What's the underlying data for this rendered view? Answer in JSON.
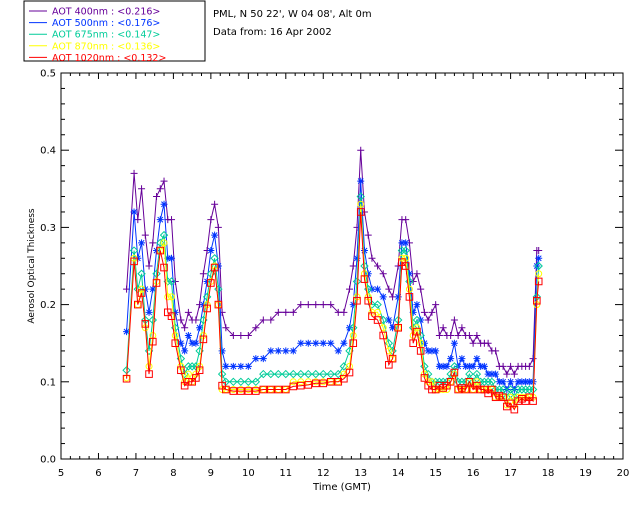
{
  "site_info": {
    "location": "PML, N 50 22', W 04 08', Alt 0m",
    "date_line": "Data from: 16 Apr 2002"
  },
  "chart_data": {
    "type": "line",
    "title": "",
    "xlabel": "Time (GMT)",
    "ylabel": "Aerosol Optical Thickness",
    "xlim": [
      5,
      20
    ],
    "ylim": [
      0.0,
      0.5
    ],
    "x_ticks": [
      "5",
      "6",
      "7",
      "8",
      "9",
      "10",
      "11",
      "12",
      "13",
      "14",
      "15",
      "16",
      "17",
      "18",
      "19",
      "20"
    ],
    "y_ticks": [
      "0.0",
      "0.1",
      "0.2",
      "0.3",
      "0.4",
      "0.5"
    ],
    "grid": false,
    "legend_position": "top-left",
    "series": [
      {
        "name": "AOT  400nm : <0.216>",
        "color": "#660099",
        "marker": "plus",
        "x": [
          6.75,
          6.95,
          7.05,
          7.15,
          7.25,
          7.35,
          7.45,
          7.55,
          7.65,
          7.75,
          7.85,
          7.95,
          8.05,
          8.2,
          8.3,
          8.4,
          8.5,
          8.6,
          8.7,
          8.8,
          8.9,
          9.0,
          9.1,
          9.2,
          9.3,
          9.4,
          9.6,
          9.8,
          10.0,
          10.2,
          10.4,
          10.6,
          10.8,
          11.0,
          11.2,
          11.4,
          11.6,
          11.8,
          12.0,
          12.2,
          12.4,
          12.55,
          12.7,
          12.8,
          12.9,
          13.0,
          13.1,
          13.2,
          13.3,
          13.45,
          13.6,
          13.75,
          13.85,
          14.0,
          14.1,
          14.2,
          14.3,
          14.4,
          14.5,
          14.6,
          14.7,
          14.8,
          14.9,
          15.0,
          15.1,
          15.2,
          15.3,
          15.4,
          15.5,
          15.6,
          15.7,
          15.8,
          15.9,
          16.0,
          16.1,
          16.2,
          16.3,
          16.4,
          16.5,
          16.6,
          16.7,
          16.8,
          16.9,
          17.0,
          17.1,
          17.2,
          17.3,
          17.4,
          17.5,
          17.6,
          17.7,
          17.75
        ],
        "values": [
          0.22,
          0.37,
          0.31,
          0.35,
          0.29,
          0.25,
          0.28,
          0.34,
          0.35,
          0.36,
          0.31,
          0.31,
          0.23,
          0.18,
          0.17,
          0.19,
          0.18,
          0.18,
          0.2,
          0.24,
          0.27,
          0.31,
          0.33,
          0.3,
          0.19,
          0.17,
          0.16,
          0.16,
          0.16,
          0.17,
          0.18,
          0.18,
          0.19,
          0.19,
          0.19,
          0.2,
          0.2,
          0.2,
          0.2,
          0.2,
          0.19,
          0.19,
          0.22,
          0.25,
          0.3,
          0.4,
          0.32,
          0.29,
          0.26,
          0.25,
          0.24,
          0.22,
          0.21,
          0.25,
          0.31,
          0.31,
          0.28,
          0.23,
          0.24,
          0.22,
          0.19,
          0.18,
          0.19,
          0.2,
          0.16,
          0.17,
          0.16,
          0.16,
          0.18,
          0.16,
          0.17,
          0.16,
          0.16,
          0.15,
          0.16,
          0.15,
          0.15,
          0.15,
          0.14,
          0.14,
          0.12,
          0.12,
          0.11,
          0.12,
          0.11,
          0.12,
          0.12,
          0.12,
          0.12,
          0.13,
          0.27,
          0.27
        ]
      },
      {
        "name": "AOT  500nm : <0.176>",
        "color": "#0033ff",
        "marker": "star",
        "x": [
          6.75,
          6.95,
          7.05,
          7.15,
          7.25,
          7.35,
          7.45,
          7.55,
          7.65,
          7.75,
          7.85,
          7.95,
          8.05,
          8.2,
          8.3,
          8.4,
          8.5,
          8.6,
          8.7,
          8.8,
          8.9,
          9.0,
          9.1,
          9.2,
          9.3,
          9.4,
          9.6,
          9.8,
          10.0,
          10.2,
          10.4,
          10.6,
          10.8,
          11.0,
          11.2,
          11.4,
          11.6,
          11.8,
          12.0,
          12.2,
          12.4,
          12.55,
          12.7,
          12.8,
          12.9,
          13.0,
          13.1,
          13.2,
          13.3,
          13.45,
          13.6,
          13.75,
          13.85,
          14.0,
          14.1,
          14.2,
          14.3,
          14.4,
          14.5,
          14.6,
          14.7,
          14.8,
          14.9,
          15.0,
          15.1,
          15.2,
          15.3,
          15.4,
          15.5,
          15.6,
          15.7,
          15.8,
          15.9,
          16.0,
          16.1,
          16.2,
          16.3,
          16.4,
          16.5,
          16.6,
          16.7,
          16.8,
          16.9,
          17.0,
          17.1,
          17.2,
          17.3,
          17.4,
          17.5,
          17.6,
          17.7,
          17.75
        ],
        "values": [
          0.165,
          0.32,
          0.26,
          0.28,
          0.22,
          0.19,
          0.22,
          0.27,
          0.31,
          0.33,
          0.26,
          0.26,
          0.19,
          0.15,
          0.14,
          0.16,
          0.15,
          0.15,
          0.17,
          0.2,
          0.23,
          0.27,
          0.29,
          0.25,
          0.14,
          0.12,
          0.12,
          0.12,
          0.12,
          0.13,
          0.13,
          0.14,
          0.14,
          0.14,
          0.14,
          0.15,
          0.15,
          0.15,
          0.15,
          0.15,
          0.14,
          0.15,
          0.17,
          0.2,
          0.26,
          0.36,
          0.27,
          0.24,
          0.22,
          0.22,
          0.21,
          0.18,
          0.17,
          0.21,
          0.28,
          0.28,
          0.24,
          0.19,
          0.2,
          0.18,
          0.15,
          0.14,
          0.14,
          0.14,
          0.12,
          0.12,
          0.12,
          0.13,
          0.15,
          0.12,
          0.13,
          0.12,
          0.12,
          0.12,
          0.13,
          0.12,
          0.12,
          0.11,
          0.11,
          0.11,
          0.1,
          0.1,
          0.09,
          0.1,
          0.09,
          0.1,
          0.1,
          0.1,
          0.1,
          0.1,
          0.25,
          0.26
        ]
      },
      {
        "name": "AOT  675nm : <0.147>",
        "color": "#00cc99",
        "marker": "diamond",
        "x": [
          6.75,
          6.95,
          7.05,
          7.15,
          7.25,
          7.35,
          7.45,
          7.55,
          7.65,
          7.75,
          7.85,
          7.95,
          8.05,
          8.2,
          8.3,
          8.4,
          8.5,
          8.6,
          8.7,
          8.8,
          8.9,
          9.0,
          9.1,
          9.2,
          9.3,
          9.4,
          9.6,
          9.8,
          10.0,
          10.2,
          10.4,
          10.6,
          10.8,
          11.0,
          11.2,
          11.4,
          11.6,
          11.8,
          12.0,
          12.2,
          12.4,
          12.55,
          12.7,
          12.8,
          12.9,
          13.0,
          13.1,
          13.2,
          13.3,
          13.45,
          13.6,
          13.75,
          13.85,
          14.0,
          14.1,
          14.2,
          14.3,
          14.4,
          14.5,
          14.6,
          14.7,
          14.8,
          14.9,
          15.0,
          15.1,
          15.2,
          15.3,
          15.4,
          15.5,
          15.6,
          15.7,
          15.8,
          15.9,
          16.0,
          16.1,
          16.2,
          16.3,
          16.4,
          16.5,
          16.6,
          16.7,
          16.8,
          16.9,
          17.0,
          17.1,
          17.2,
          17.3,
          17.4,
          17.5,
          17.6,
          17.7,
          17.75
        ],
        "values": [
          0.115,
          0.27,
          0.22,
          0.24,
          0.18,
          0.14,
          0.18,
          0.24,
          0.28,
          0.29,
          0.23,
          0.23,
          0.17,
          0.13,
          0.11,
          0.12,
          0.12,
          0.12,
          0.14,
          0.18,
          0.21,
          0.24,
          0.26,
          0.22,
          0.11,
          0.1,
          0.1,
          0.1,
          0.1,
          0.1,
          0.11,
          0.11,
          0.11,
          0.11,
          0.11,
          0.11,
          0.11,
          0.11,
          0.11,
          0.11,
          0.11,
          0.12,
          0.14,
          0.17,
          0.23,
          0.34,
          0.25,
          0.22,
          0.2,
          0.2,
          0.18,
          0.15,
          0.14,
          0.18,
          0.27,
          0.27,
          0.23,
          0.17,
          0.18,
          0.16,
          0.12,
          0.11,
          0.1,
          0.1,
          0.1,
          0.1,
          0.1,
          0.11,
          0.12,
          0.1,
          0.1,
          0.1,
          0.11,
          0.1,
          0.11,
          0.1,
          0.1,
          0.1,
          0.1,
          0.09,
          0.09,
          0.09,
          0.08,
          0.09,
          0.08,
          0.09,
          0.09,
          0.09,
          0.09,
          0.09,
          0.21,
          0.25
        ]
      },
      {
        "name": "AOT  870nm : <0.136>",
        "color": "#ffff00",
        "marker": "circle",
        "x": [
          6.75,
          6.95,
          7.05,
          7.15,
          7.25,
          7.35,
          7.45,
          7.55,
          7.65,
          7.75,
          7.85,
          7.95,
          8.05,
          8.2,
          8.3,
          8.4,
          8.5,
          8.6,
          8.7,
          8.8,
          8.9,
          9.0,
          9.1,
          9.2,
          9.3,
          9.4,
          9.6,
          9.8,
          10.0,
          10.2,
          10.4,
          10.6,
          10.8,
          11.0,
          11.2,
          11.4,
          11.6,
          11.8,
          12.0,
          12.2,
          12.4,
          12.55,
          12.7,
          12.8,
          12.9,
          13.0,
          13.1,
          13.2,
          13.3,
          13.45,
          13.6,
          13.75,
          13.85,
          14.0,
          14.1,
          14.2,
          14.3,
          14.4,
          14.5,
          14.6,
          14.7,
          14.8,
          14.9,
          15.0,
          15.1,
          15.2,
          15.3,
          15.4,
          15.5,
          15.6,
          15.7,
          15.8,
          15.9,
          16.0,
          16.1,
          16.2,
          16.3,
          16.4,
          16.5,
          16.6,
          16.7,
          16.8,
          16.9,
          17.0,
          17.1,
          17.2,
          17.3,
          17.4,
          17.5,
          17.6,
          17.7,
          17.75
        ],
        "values": [
          0.105,
          0.26,
          0.2,
          0.22,
          0.17,
          0.12,
          0.16,
          0.23,
          0.27,
          0.28,
          0.21,
          0.21,
          0.16,
          0.12,
          0.1,
          0.11,
          0.1,
          0.11,
          0.12,
          0.16,
          0.2,
          0.23,
          0.25,
          0.2,
          0.09,
          0.09,
          0.09,
          0.09,
          0.09,
          0.09,
          0.09,
          0.09,
          0.09,
          0.09,
          0.1,
          0.1,
          0.1,
          0.1,
          0.1,
          0.1,
          0.1,
          0.11,
          0.12,
          0.16,
          0.21,
          0.33,
          0.24,
          0.21,
          0.19,
          0.19,
          0.17,
          0.14,
          0.13,
          0.17,
          0.26,
          0.26,
          0.22,
          0.16,
          0.17,
          0.15,
          0.11,
          0.1,
          0.1,
          0.09,
          0.09,
          0.09,
          0.09,
          0.1,
          0.11,
          0.09,
          0.09,
          0.09,
          0.1,
          0.09,
          0.1,
          0.09,
          0.09,
          0.09,
          0.09,
          0.08,
          0.08,
          0.08,
          0.07,
          0.08,
          0.07,
          0.08,
          0.08,
          0.08,
          0.08,
          0.08,
          0.2,
          0.24
        ]
      },
      {
        "name": "AOT 1020nm : <0.132>",
        "color": "#ff0000",
        "marker": "square",
        "x": [
          6.75,
          6.95,
          7.05,
          7.15,
          7.25,
          7.35,
          7.45,
          7.55,
          7.65,
          7.75,
          7.85,
          7.95,
          8.05,
          8.2,
          8.3,
          8.4,
          8.5,
          8.6,
          8.7,
          8.8,
          8.9,
          9.0,
          9.1,
          9.2,
          9.3,
          9.4,
          9.6,
          9.8,
          10.0,
          10.2,
          10.4,
          10.6,
          10.8,
          11.0,
          11.2,
          11.4,
          11.6,
          11.8,
          12.0,
          12.2,
          12.4,
          12.55,
          12.7,
          12.8,
          12.9,
          13.0,
          13.1,
          13.2,
          13.3,
          13.45,
          13.6,
          13.75,
          13.85,
          14.0,
          14.1,
          14.2,
          14.3,
          14.4,
          14.5,
          14.6,
          14.7,
          14.8,
          14.9,
          15.0,
          15.1,
          15.2,
          15.3,
          15.4,
          15.5,
          15.6,
          15.7,
          15.8,
          15.9,
          16.0,
          16.1,
          16.2,
          16.3,
          16.4,
          16.5,
          16.6,
          16.7,
          16.8,
          16.9,
          17.0,
          17.1,
          17.2,
          17.3,
          17.4,
          17.5,
          17.6,
          17.7,
          17.75
        ],
        "values": [
          0.104,
          0.256,
          0.2,
          0.215,
          0.175,
          0.11,
          0.152,
          0.228,
          0.27,
          0.248,
          0.19,
          0.185,
          0.15,
          0.115,
          0.095,
          0.1,
          0.1,
          0.105,
          0.115,
          0.155,
          0.195,
          0.228,
          0.248,
          0.2,
          0.095,
          0.09,
          0.088,
          0.088,
          0.088,
          0.088,
          0.09,
          0.09,
          0.09,
          0.09,
          0.094,
          0.095,
          0.096,
          0.098,
          0.098,
          0.1,
          0.1,
          0.104,
          0.112,
          0.15,
          0.205,
          0.32,
          0.233,
          0.205,
          0.185,
          0.18,
          0.16,
          0.122,
          0.13,
          0.17,
          0.255,
          0.25,
          0.21,
          0.15,
          0.165,
          0.14,
          0.105,
          0.095,
          0.09,
          0.09,
          0.095,
          0.092,
          0.095,
          0.1,
          0.112,
          0.09,
          0.092,
          0.09,
          0.1,
          0.09,
          0.095,
          0.09,
          0.09,
          0.085,
          0.09,
          0.08,
          0.082,
          0.08,
          0.068,
          0.072,
          0.064,
          0.075,
          0.078,
          0.075,
          0.08,
          0.075,
          0.205,
          0.23
        ]
      }
    ]
  }
}
